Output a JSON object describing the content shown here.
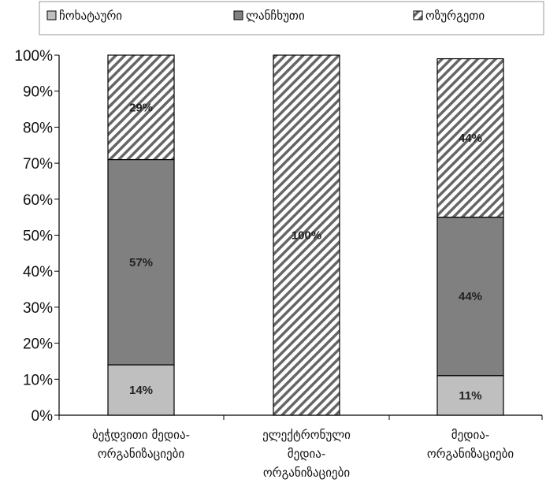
{
  "chart_data": {
    "type": "bar",
    "stacked": true,
    "categories": [
      [
        "ბეჭდვითი მედია-",
        "ორგანიზაციები"
      ],
      [
        "ელექტრონული",
        "მედია-",
        "ორგანიზაციები"
      ],
      [
        "მედია-",
        "ორგანიზაციები"
      ]
    ],
    "series": [
      {
        "name": "ჩოხატაური",
        "values": [
          14,
          0,
          11
        ],
        "labels": [
          "14%",
          "",
          "11%"
        ],
        "color": "#bfbfbf",
        "pattern": "solid"
      },
      {
        "name": "ლანჩხუთი",
        "values": [
          57,
          0,
          44
        ],
        "labels": [
          "57%",
          "",
          "44%"
        ],
        "color": "#808080",
        "pattern": "solid"
      },
      {
        "name": "ოზურგეთი",
        "values": [
          29,
          100,
          44
        ],
        "labels": [
          "29%",
          "100%",
          "44%"
        ],
        "color": "#ffffff",
        "pattern": "diagonal-hatch"
      }
    ],
    "y_ticks": [
      "0%",
      "10%",
      "20%",
      "30%",
      "40%",
      "50%",
      "60%",
      "70%",
      "80%",
      "90%",
      "100%"
    ],
    "ylim": [
      0,
      100
    ],
    "legend": "top",
    "grid": false
  }
}
